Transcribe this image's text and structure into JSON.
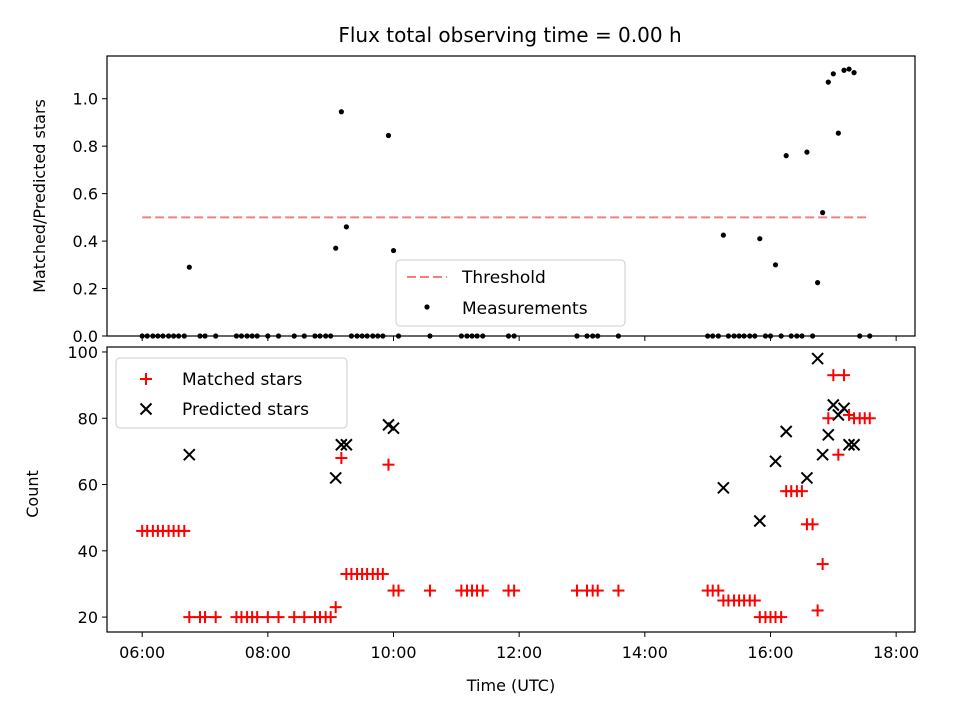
{
  "chart_data": [
    {
      "type": "scatter",
      "title": "Flux total observing time = 0.00 h",
      "xlabel": "",
      "ylabel": "Matched/Predicted stars",
      "xlim": [
        5.44,
        18.3
      ],
      "ylim": [
        0,
        1.18
      ],
      "yticks": [
        0.0,
        0.2,
        0.4,
        0.6,
        0.8,
        1.0
      ],
      "ytick_labels": [
        "0.0",
        "0.2",
        "0.4",
        "0.6",
        "0.8",
        "1.0"
      ],
      "legend_position": "lower-center",
      "threshold": {
        "name": "Threshold",
        "value": 0.5,
        "x_range": [
          6.0,
          17.58
        ],
        "color": "#f08080"
      },
      "measurements": {
        "name": "Measurements",
        "color": "#000000",
        "points": [
          [
            6.0,
            0
          ],
          [
            6.08,
            0
          ],
          [
            6.17,
            0
          ],
          [
            6.25,
            0
          ],
          [
            6.33,
            0
          ],
          [
            6.42,
            0
          ],
          [
            6.5,
            0
          ],
          [
            6.58,
            0
          ],
          [
            6.67,
            0
          ],
          [
            6.75,
            0.29
          ],
          [
            6.92,
            0
          ],
          [
            7.0,
            0
          ],
          [
            7.17,
            0
          ],
          [
            7.5,
            0
          ],
          [
            7.58,
            0
          ],
          [
            7.67,
            0
          ],
          [
            7.75,
            0
          ],
          [
            7.83,
            0
          ],
          [
            8.0,
            0
          ],
          [
            8.17,
            0
          ],
          [
            8.42,
            0
          ],
          [
            8.58,
            0
          ],
          [
            8.75,
            0
          ],
          [
            8.83,
            0
          ],
          [
            8.92,
            0
          ],
          [
            9.0,
            0
          ],
          [
            9.08,
            0.37
          ],
          [
            9.17,
            0.945
          ],
          [
            9.25,
            0.46
          ],
          [
            9.33,
            0
          ],
          [
            9.42,
            0
          ],
          [
            9.5,
            0
          ],
          [
            9.58,
            0
          ],
          [
            9.67,
            0
          ],
          [
            9.75,
            0
          ],
          [
            9.83,
            0
          ],
          [
            9.92,
            0.845
          ],
          [
            10.0,
            0.36
          ],
          [
            10.08,
            0
          ],
          [
            10.58,
            0
          ],
          [
            11.08,
            0
          ],
          [
            11.17,
            0
          ],
          [
            11.25,
            0
          ],
          [
            11.33,
            0
          ],
          [
            11.42,
            0
          ],
          [
            11.83,
            0
          ],
          [
            11.92,
            0
          ],
          [
            12.92,
            0
          ],
          [
            13.08,
            0
          ],
          [
            13.17,
            0
          ],
          [
            13.25,
            0
          ],
          [
            13.58,
            0
          ],
          [
            15.0,
            0
          ],
          [
            15.08,
            0
          ],
          [
            15.17,
            0
          ],
          [
            15.25,
            0.425
          ],
          [
            15.33,
            0
          ],
          [
            15.42,
            0
          ],
          [
            15.5,
            0
          ],
          [
            15.58,
            0
          ],
          [
            15.67,
            0
          ],
          [
            15.75,
            0
          ],
          [
            15.83,
            0.41
          ],
          [
            15.92,
            0
          ],
          [
            16.0,
            0
          ],
          [
            16.08,
            0.3
          ],
          [
            16.17,
            0
          ],
          [
            16.25,
            0.76
          ],
          [
            16.33,
            0
          ],
          [
            16.42,
            0
          ],
          [
            16.5,
            0
          ],
          [
            16.58,
            0.775
          ],
          [
            16.67,
            0
          ],
          [
            16.75,
            0.225
          ],
          [
            16.83,
            0.52
          ],
          [
            16.92,
            1.07
          ],
          [
            17.0,
            1.105
          ],
          [
            17.08,
            0.855
          ],
          [
            17.17,
            1.12
          ],
          [
            17.25,
            1.125
          ],
          [
            17.33,
            1.11
          ],
          [
            17.42,
            0
          ],
          [
            17.58,
            0
          ]
        ]
      }
    },
    {
      "type": "scatter",
      "title": "",
      "xlabel": "Time (UTC)",
      "ylabel": "Count",
      "xlim": [
        5.44,
        18.3
      ],
      "ylim": [
        15.5,
        101.5
      ],
      "xticks": [
        6,
        8,
        10,
        12,
        14,
        16,
        18
      ],
      "xtick_labels": [
        "06:00",
        "08:00",
        "10:00",
        "12:00",
        "14:00",
        "16:00",
        "18:00"
      ],
      "yticks": [
        20,
        40,
        60,
        80,
        100
      ],
      "ytick_labels": [
        "20",
        "40",
        "60",
        "80",
        "100"
      ],
      "legend_position": "upper-left",
      "series": [
        {
          "name": "Matched stars",
          "marker": "plus",
          "color": "#ff0000",
          "points": [
            [
              6.0,
              46
            ],
            [
              6.08,
              46
            ],
            [
              6.17,
              46
            ],
            [
              6.25,
              46
            ],
            [
              6.33,
              46
            ],
            [
              6.42,
              46
            ],
            [
              6.5,
              46
            ],
            [
              6.58,
              46
            ],
            [
              6.67,
              46
            ],
            [
              6.75,
              20
            ],
            [
              6.92,
              20
            ],
            [
              7.0,
              20
            ],
            [
              7.17,
              20
            ],
            [
              7.5,
              20
            ],
            [
              7.58,
              20
            ],
            [
              7.67,
              20
            ],
            [
              7.75,
              20
            ],
            [
              7.83,
              20
            ],
            [
              8.0,
              20
            ],
            [
              8.17,
              20
            ],
            [
              8.42,
              20
            ],
            [
              8.58,
              20
            ],
            [
              8.75,
              20
            ],
            [
              8.83,
              20
            ],
            [
              8.92,
              20
            ],
            [
              9.0,
              20
            ],
            [
              9.08,
              23
            ],
            [
              9.17,
              68
            ],
            [
              9.25,
              33
            ],
            [
              9.33,
              33
            ],
            [
              9.42,
              33
            ],
            [
              9.5,
              33
            ],
            [
              9.58,
              33
            ],
            [
              9.67,
              33
            ],
            [
              9.75,
              33
            ],
            [
              9.83,
              33
            ],
            [
              9.92,
              66
            ],
            [
              10.0,
              28
            ],
            [
              10.08,
              28
            ],
            [
              10.58,
              28
            ],
            [
              11.08,
              28
            ],
            [
              11.17,
              28
            ],
            [
              11.25,
              28
            ],
            [
              11.33,
              28
            ],
            [
              11.42,
              28
            ],
            [
              11.83,
              28
            ],
            [
              11.92,
              28
            ],
            [
              12.92,
              28
            ],
            [
              13.08,
              28
            ],
            [
              13.17,
              28
            ],
            [
              13.25,
              28
            ],
            [
              13.58,
              28
            ],
            [
              15.0,
              28
            ],
            [
              15.08,
              28
            ],
            [
              15.17,
              28
            ],
            [
              15.25,
              25
            ],
            [
              15.33,
              25
            ],
            [
              15.42,
              25
            ],
            [
              15.5,
              25
            ],
            [
              15.58,
              25
            ],
            [
              15.67,
              25
            ],
            [
              15.75,
              25
            ],
            [
              15.83,
              20
            ],
            [
              15.92,
              20
            ],
            [
              16.0,
              20
            ],
            [
              16.08,
              20
            ],
            [
              16.17,
              20
            ],
            [
              16.25,
              58
            ],
            [
              16.33,
              58
            ],
            [
              16.42,
              58
            ],
            [
              16.5,
              58
            ],
            [
              16.58,
              48
            ],
            [
              16.67,
              48
            ],
            [
              16.75,
              22
            ],
            [
              16.83,
              36
            ],
            [
              16.92,
              80
            ],
            [
              17.0,
              93
            ],
            [
              17.08,
              69
            ],
            [
              17.17,
              93
            ],
            [
              17.25,
              81
            ],
            [
              17.33,
              80
            ],
            [
              17.42,
              80
            ],
            [
              17.5,
              80
            ],
            [
              17.58,
              80
            ]
          ]
        },
        {
          "name": "Predicted stars",
          "marker": "x",
          "color": "#000000",
          "points": [
            [
              6.75,
              69
            ],
            [
              9.08,
              62
            ],
            [
              9.17,
              72
            ],
            [
              9.25,
              72
            ],
            [
              9.92,
              78
            ],
            [
              10.0,
              77
            ],
            [
              15.25,
              59
            ],
            [
              15.83,
              49
            ],
            [
              16.08,
              67
            ],
            [
              16.25,
              76
            ],
            [
              16.58,
              62
            ],
            [
              16.75,
              98
            ],
            [
              16.83,
              69
            ],
            [
              16.92,
              75
            ],
            [
              17.0,
              84
            ],
            [
              17.08,
              81
            ],
            [
              17.17,
              83
            ],
            [
              17.25,
              72
            ],
            [
              17.33,
              72
            ]
          ]
        }
      ]
    }
  ]
}
